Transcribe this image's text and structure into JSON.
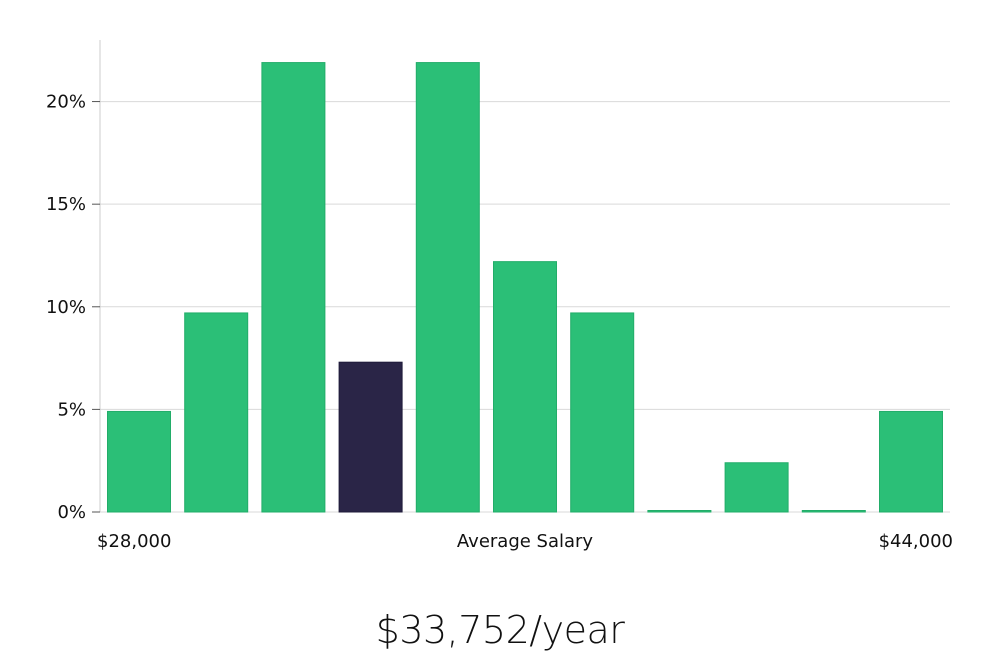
{
  "chart_data": {
    "type": "bar",
    "title": "",
    "xlabel": "Average Salary",
    "ylabel": "",
    "x_start_label": "$28,000",
    "x_end_label": "$44,000",
    "y_ticks": [
      0,
      5,
      10,
      15,
      20
    ],
    "y_tick_labels": [
      "0%",
      "5%",
      "10%",
      "15%",
      "20%"
    ],
    "ylim": [
      0,
      23
    ],
    "grid": true,
    "values": [
      4.9,
      9.7,
      21.9,
      7.3,
      21.9,
      12.2,
      9.7,
      0,
      2.4,
      0,
      4.9
    ],
    "highlight_index": 3,
    "colors": {
      "bar": "#2bbf77",
      "bar_stroke": "#22ad69",
      "highlight": "#2a2547",
      "grid": "#d9d9d9",
      "axis": "#cccccc"
    }
  },
  "summary": {
    "salary_text": "$33,752/year"
  }
}
